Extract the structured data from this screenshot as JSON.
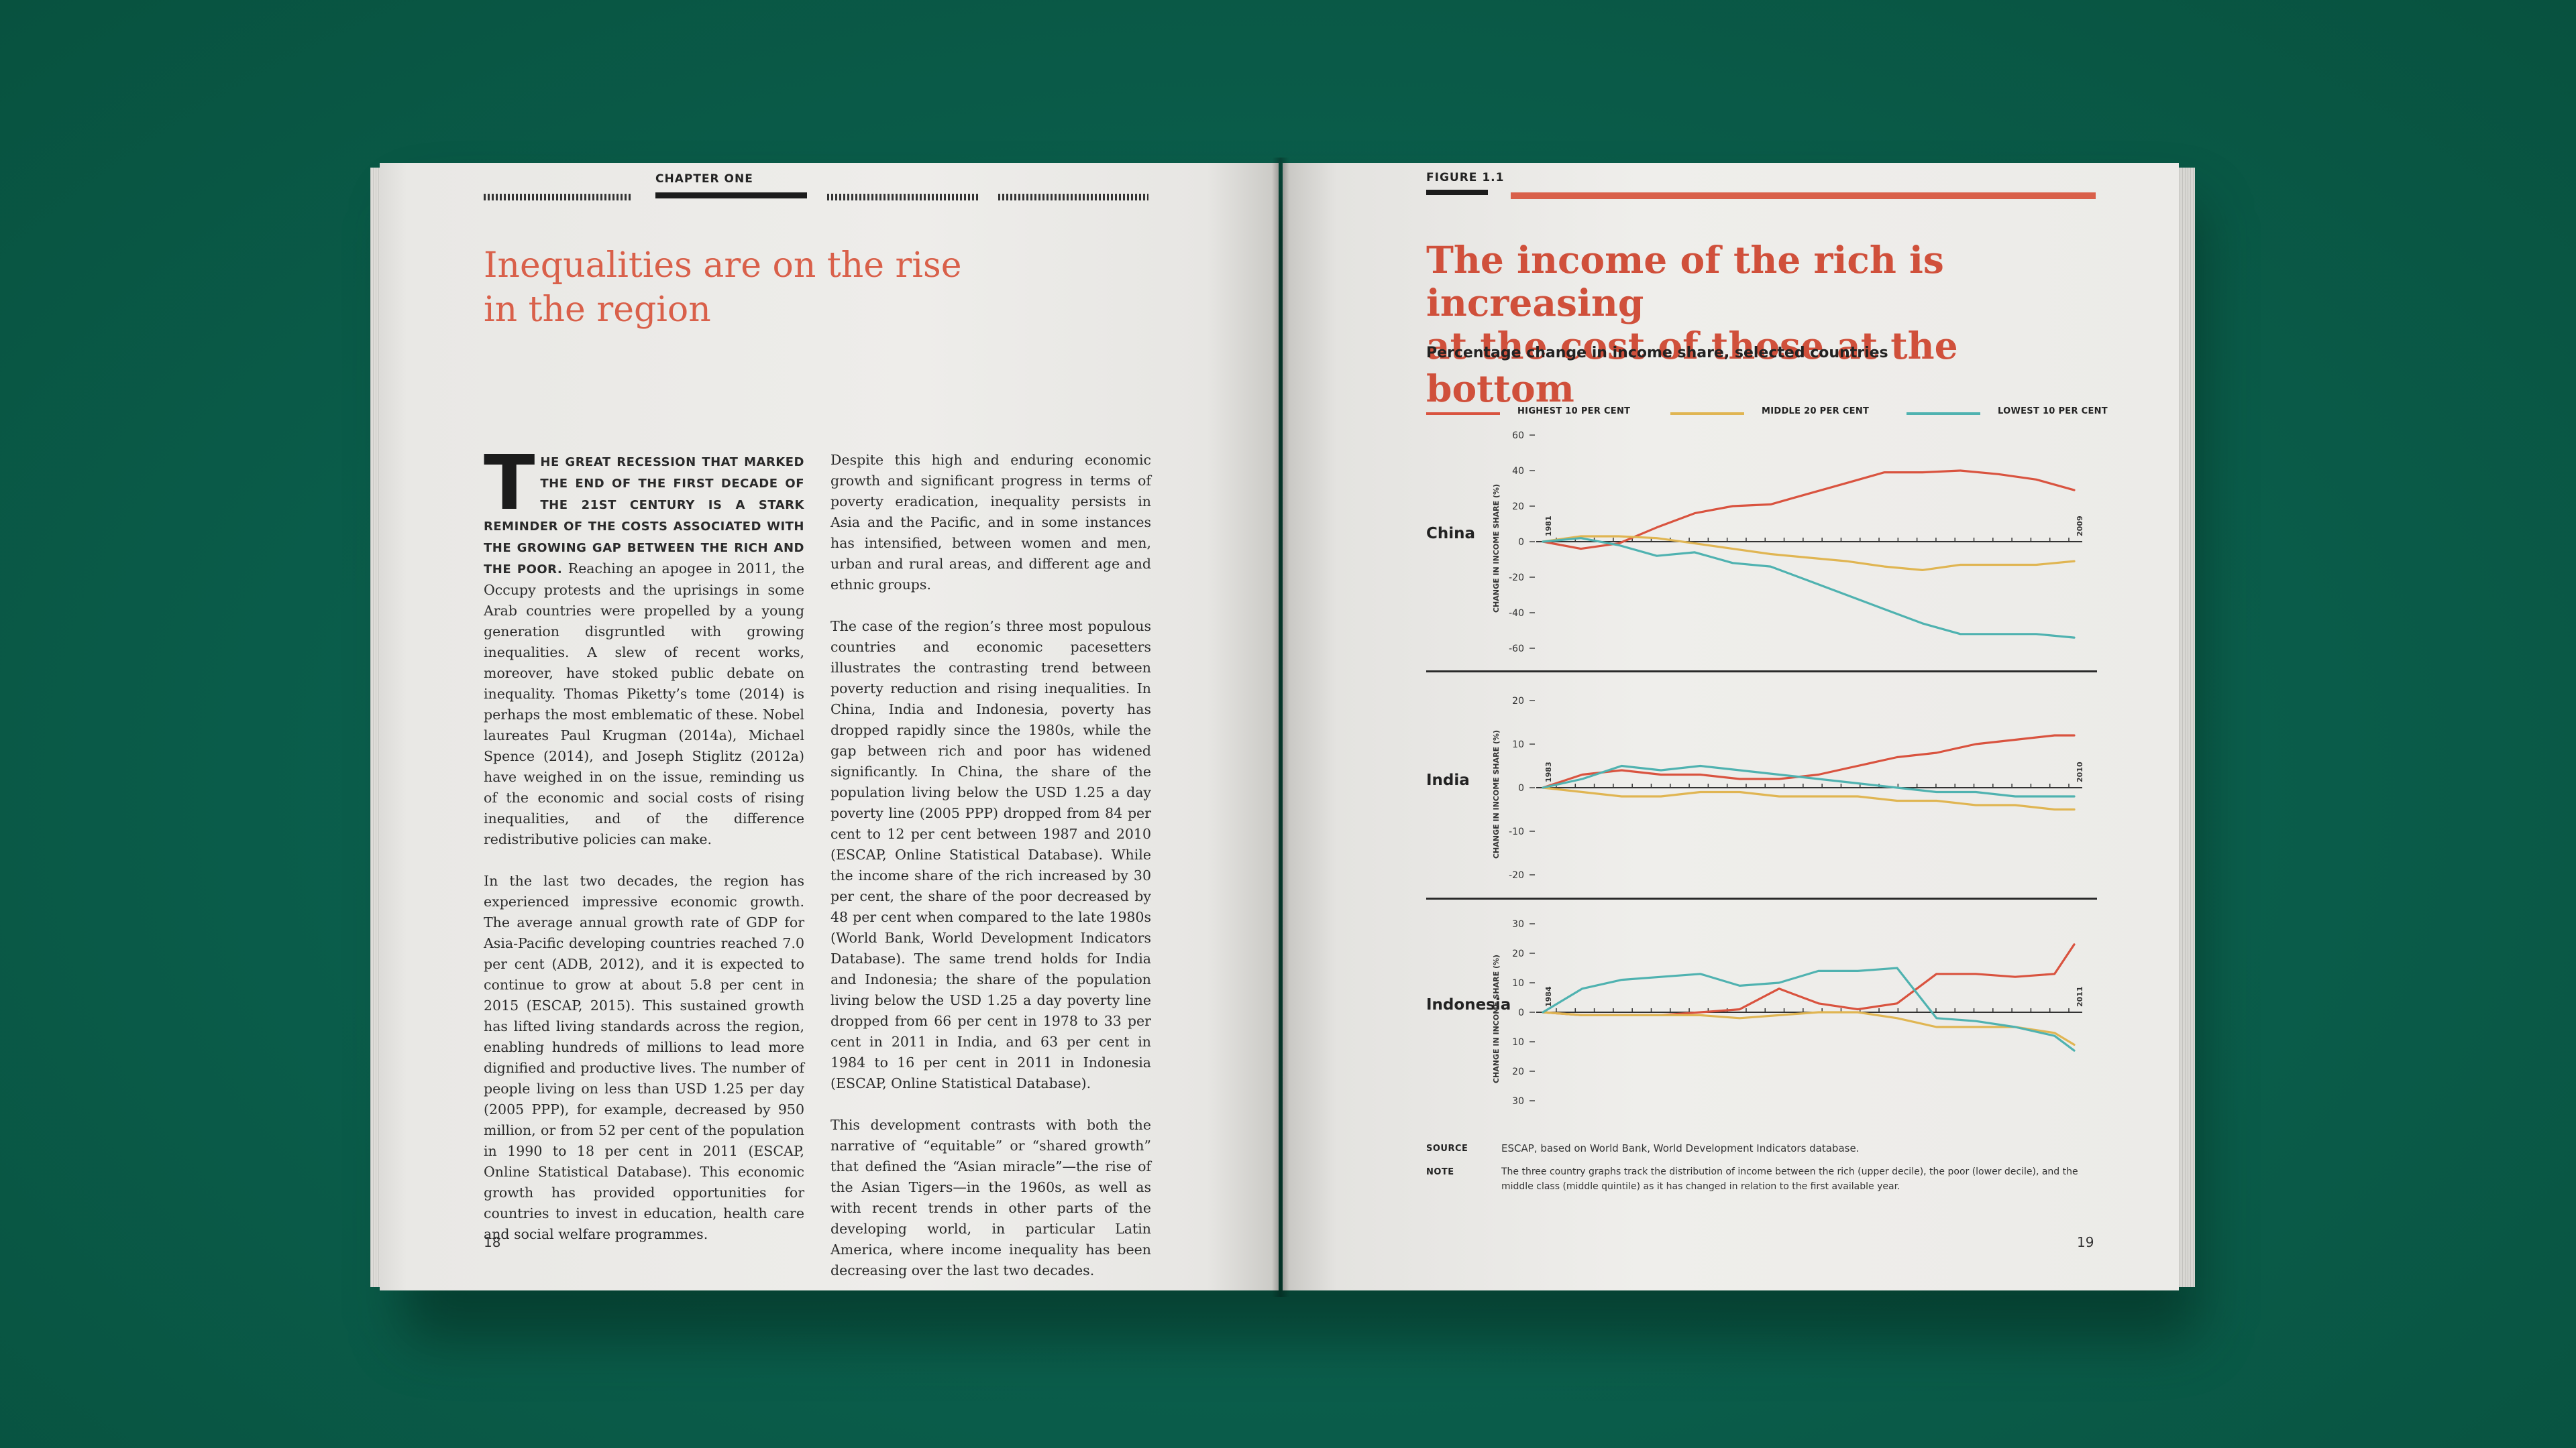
{
  "left_page": {
    "chapter": "CHAPTER ONE",
    "title_line1": "Inequalities are on the rise",
    "title_line2": "in the region",
    "dropcap": "T",
    "lead_caps": "HE GREAT RECESSION THAT MARKED THE END OF THE FIRST DECADE OF THE 21ST CENTURY IS A STARK REMINDER OF THE COSTS ASSOCIATED WITH THE GROWING GAP BETWEEN THE RICH AND THE POOR.",
    "p1_rest": " Reaching an apogee in 2011, the Occupy protests and the uprisings in some Arab countries were propelled by a young generation disgruntled with growing inequalities. A slew of recent works, moreover, have stoked public debate on inequality. Thomas Piketty’s tome (2014) is perhaps the most emblematic of these. Nobel laureates Paul Krugman (2014a), Michael Spence (2014), and Joseph Stiglitz (2012a) have weighed in on the issue, reminding us of the economic and social costs of rising inequalities, and of the difference redistributive policies can make.",
    "p2": "In the last two decades, the region has experienced impressive economic growth. The average annual growth rate of GDP for Asia-Pacific developing countries reached 7.0 per cent (ADB, 2012), and it is expected to continue to grow at about 5.8 per cent in 2015 (ESCAP, 2015). This sustained growth has lifted living standards across the region, enabling hundreds of millions to lead more dignified and productive lives. The number of people living on less than USD 1.25 per day (2005 PPP), for example, decreased by 950 million, or from 52 per cent of the population in 1990 to 18 per cent in 2011 (ESCAP, Online Statistical Database). This economic growth has provided opportunities for countries to invest in education, health care and social welfare programmes.",
    "p3": "Despite this high and enduring economic growth and significant progress in terms of poverty eradication, inequality persists in Asia and the Pacific, and in some instances has intensified, between women and men, urban and rural areas, and different age and ethnic groups.",
    "p4": "The case of the region’s three most populous countries and economic pacesetters illustrates the contrasting trend between poverty reduction and rising inequalities. In China, India and Indonesia, poverty has dropped rapidly since the 1980s, while the gap between rich and poor has widened significantly. In China, the share of the population living below the USD 1.25 a day poverty line (2005 PPP) dropped from 84 per cent to 12 per cent between 1987 and 2010 (ESCAP, Online Statistical Database). While the income share of the rich increased by 30 per cent, the share of the poor decreased by 48 per cent when compared to the late 1980s (World Bank, World Development Indicators Database). The same trend holds for India and Indonesia; the share of the population living below the USD 1.25 a day poverty line dropped from 66 per cent in 1978 to 33 per cent in 2011 in India, and 63 per cent in 1984 to 16 per cent in 2011 in Indonesia (ESCAP, Online Statistical Database).",
    "p5": "This development contrasts with both the narrative of “equitable” or “shared growth” that defined the “Asian miracle”—the rise of the Asian Tigers—in the 1960s, as well as with recent trends in other parts of the developing world, in particular Latin America, where income inequality has been decreasing over the last two decades.",
    "page_number": "18"
  },
  "right_page": {
    "figure_label": "FIGURE 1.1",
    "title_line1": "The income of the rich is increasing",
    "title_line2": "at the cost of those at the bottom",
    "subtitle": "Percentage change in income share, selected countries",
    "legend": [
      {
        "label": "HIGHEST 10 PER CENT",
        "color": "#d9533f"
      },
      {
        "label": "MIDDLE 20 PER CENT",
        "color": "#e0b552"
      },
      {
        "label": "LOWEST 10 PER CENT",
        "color": "#4fb2b0"
      }
    ],
    "source_label": "SOURCE",
    "source_text": "ESCAP, based on World Bank, World Development Indicators database.",
    "note_label": "NOTE",
    "note_text": "The three country graphs track the distribution of income between the rich (upper decile), the poor (lower decile), and the middle class (middle quintile) as it has changed in relation to the first available year.",
    "page_number": "19"
  },
  "chart_data": [
    {
      "type": "line",
      "country": "China",
      "ylabel": "CHANGE IN INCOME SHARE (%)",
      "start_label": "1981",
      "end_label": "2009",
      "x": [
        1981,
        1983,
        1985,
        1987,
        1989,
        1991,
        1993,
        1995,
        1997,
        1999,
        2001,
        2003,
        2005,
        2007,
        2009
      ],
      "yticks": [
        "60",
        "40",
        "20",
        "0",
        "-20",
        "-40",
        "-60"
      ],
      "ylim": [
        -70,
        65
      ],
      "series": [
        {
          "name": "HIGHEST 10 PER CENT",
          "values": [
            0,
            -4,
            -1,
            8,
            16,
            20,
            21,
            27,
            33,
            39,
            39,
            40,
            38,
            35,
            29
          ]
        },
        {
          "name": "MIDDLE 20 PER CENT",
          "values": [
            0,
            3,
            3,
            2,
            -1,
            -4,
            -7,
            -9,
            -11,
            -14,
            -16,
            -13,
            -13,
            -13,
            -11
          ]
        },
        {
          "name": "LOWEST 10 PER CENT",
          "values": [
            0,
            2,
            -2,
            -8,
            -6,
            -12,
            -14,
            -22,
            -30,
            -38,
            -46,
            -52,
            -52,
            -52,
            -54
          ]
        }
      ]
    },
    {
      "type": "line",
      "country": "India",
      "ylabel": "CHANGE IN INCOME SHARE (%)",
      "start_label": "1983",
      "end_label": "2010",
      "x": [
        1983,
        1985,
        1987,
        1989,
        1991,
        1993,
        1995,
        1997,
        1999,
        2001,
        2003,
        2005,
        2007,
        2009,
        2010
      ],
      "yticks": [
        "20",
        "10",
        "0",
        "-10",
        "-20"
      ],
      "ylim": [
        -22,
        22
      ],
      "series": [
        {
          "name": "HIGHEST 10 PER CENT",
          "values": [
            0,
            3,
            4,
            3,
            3,
            2,
            2,
            3,
            5,
            7,
            8,
            10,
            11,
            12,
            12
          ]
        },
        {
          "name": "MIDDLE 20 PER CENT",
          "values": [
            0,
            -1,
            -2,
            -2,
            -1,
            -1,
            -2,
            -2,
            -2,
            -3,
            -3,
            -4,
            -4,
            -5,
            -5
          ]
        },
        {
          "name": "LOWEST 10 PER CENT",
          "values": [
            0,
            2,
            5,
            4,
            5,
            4,
            3,
            2,
            1,
            0,
            -1,
            -1,
            -2,
            -2,
            -2
          ]
        }
      ]
    },
    {
      "type": "line",
      "country": "Indonesia",
      "ylabel": "CHANGE IN INCOME SHARE (%)",
      "start_label": "1984",
      "end_label": "2011",
      "x": [
        1984,
        1986,
        1988,
        1990,
        1992,
        1994,
        1996,
        1998,
        2000,
        2002,
        2004,
        2006,
        2008,
        2010,
        2011
      ],
      "yticks": [
        "30",
        "20",
        "10",
        "0",
        "10",
        "20",
        "30"
      ],
      "ylim": [
        -33,
        33
      ],
      "series": [
        {
          "name": "HIGHEST 10 PER CENT",
          "values": [
            0,
            -1,
            -1,
            -1,
            0,
            1,
            8,
            3,
            1,
            3,
            13,
            13,
            12,
            13,
            23
          ]
        },
        {
          "name": "MIDDLE 20 PER CENT",
          "values": [
            0,
            -1,
            -1,
            -1,
            -1,
            -2,
            -1,
            0,
            0,
            -2,
            -5,
            -5,
            -5,
            -7,
            -11
          ]
        },
        {
          "name": "LOWEST 10 PER CENT",
          "values": [
            0,
            8,
            11,
            12,
            13,
            9,
            10,
            14,
            14,
            15,
            -2,
            -3,
            -5,
            -8,
            -13
          ]
        }
      ]
    }
  ]
}
